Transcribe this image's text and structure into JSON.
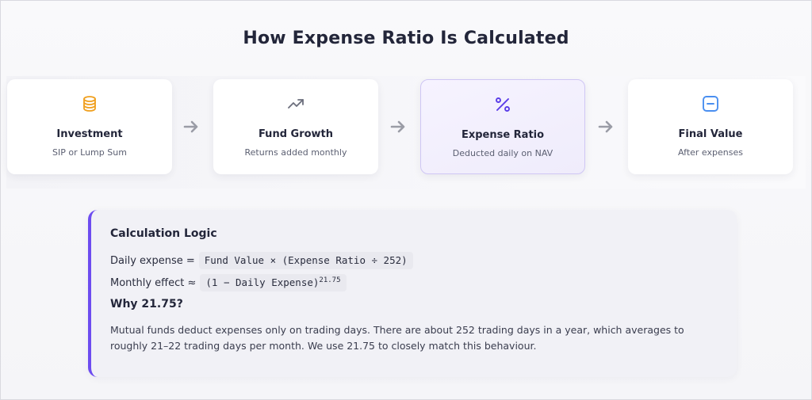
{
  "title": "How Expense Ratio Is Calculated",
  "steps": [
    {
      "label": "Investment",
      "desc": "SIP or Lump Sum",
      "icon": "coins-icon",
      "color": "#f0a020"
    },
    {
      "label": "Fund Growth",
      "desc": "Returns added monthly",
      "icon": "trending-up-icon",
      "color": "#6b6e7c"
    },
    {
      "label": "Expense Ratio",
      "desc": "Deducted daily on NAV",
      "icon": "percent-icon",
      "color": "#5b3de8",
      "active": true
    },
    {
      "label": "Final Value",
      "desc": "After expenses",
      "icon": "minus-square-icon",
      "color": "#4a8ff0"
    }
  ],
  "logic": {
    "heading": "Calculation Logic",
    "daily_label": "Daily expense =",
    "daily_formula": "Fund Value × (Expense Ratio ÷ 252)",
    "monthly_label": "Monthly effect ≈",
    "monthly_formula": "(1 − Daily Expense)",
    "monthly_exponent": "21.75",
    "why_heading": "Why 21.75?",
    "explanation": "Mutual funds deduct expenses only on trading days. There are about 252 trading days in a year, which averages to roughly 21–22 trading days per month. We use 21.75 to closely match this behaviour."
  },
  "colors": {
    "accent": "#6d4cf0",
    "arrow": "#9a9ca6"
  }
}
